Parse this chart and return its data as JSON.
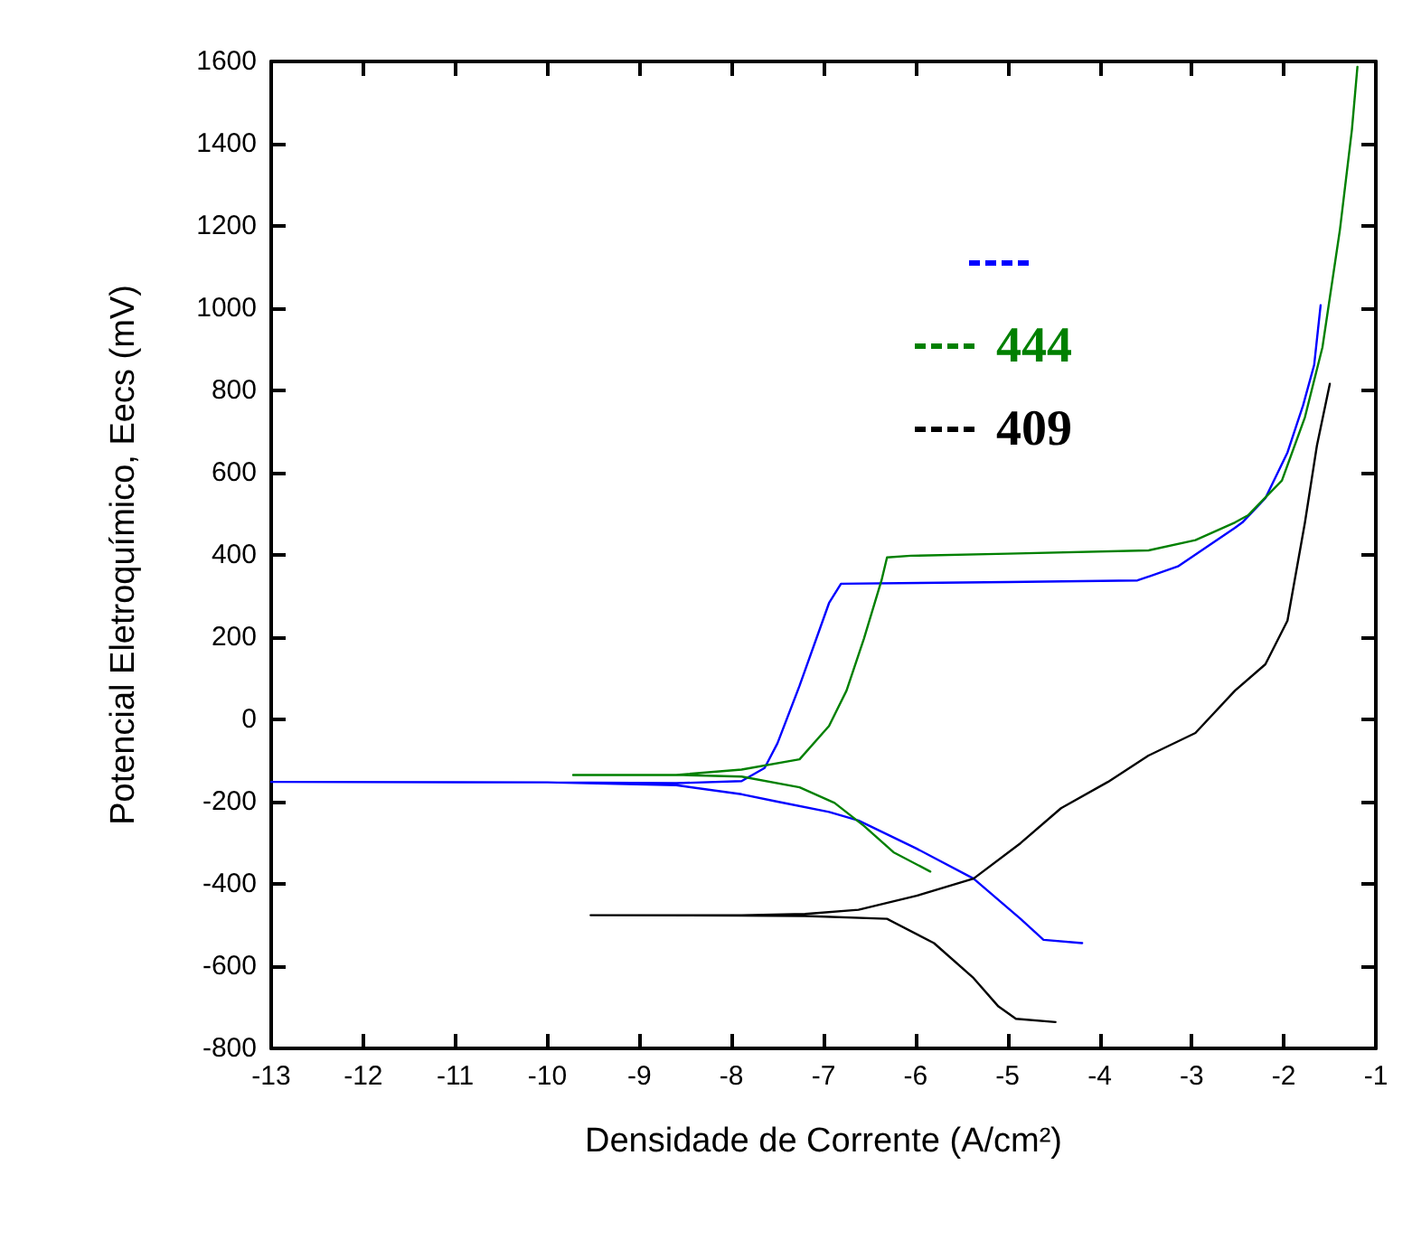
{
  "chart_data": {
    "type": "line",
    "xlabel": "Densidade de Corrente (A/cm²)",
    "ylabel": "Potencial Eletroquímico, Eecs (mV)",
    "xlim": [
      -13,
      -1
    ],
    "xticks": [
      -13,
      -12,
      -11,
      -10,
      -9,
      -8,
      -7,
      -6,
      -5,
      -4,
      -3,
      -2,
      -1
    ],
    "ylim": [
      -800,
      1600
    ],
    "yticks": [
      -800,
      -600,
      -400,
      -200,
      0,
      200,
      400,
      600,
      800,
      1000,
      1200,
      1400,
      1600
    ],
    "grid": false,
    "legend": "top right",
    "marker": "none",
    "line_style": "solid",
    "series": [
      {
        "color": "#0000ff",
        "x": [
          -4.19,
          -4.61,
          -4.86,
          -5.37,
          -5.99,
          -6.62,
          -6.94,
          -7.5,
          -7.89,
          -8.6,
          -10,
          -13,
          -10,
          -8.6,
          -7.89,
          -7.64,
          -7.5,
          -7.26,
          -6.94,
          -6.81,
          -5,
          -3.59,
          -3.15,
          -2.53,
          -2.45,
          -2.2,
          -1.96,
          -1.79,
          -1.67,
          -1.6
        ],
        "values": [
          -544,
          -536,
          -485,
          -387,
          -314,
          -246,
          -225,
          -200,
          -182,
          -160,
          -153,
          -152,
          -153,
          -155,
          -150,
          -118,
          -58,
          82,
          283,
          330,
          334,
          338,
          372,
          466,
          479,
          538,
          649,
          764,
          862,
          1007
        ]
      },
      {
        "name": "444",
        "color": "#008000",
        "x": [
          -5.84,
          -6.24,
          -6.56,
          -6.88,
          -7.26,
          -7.89,
          -8.6,
          -9.72,
          -8.6,
          -7.89,
          -7.26,
          -6.94,
          -6.75,
          -6.56,
          -6.37,
          -6.31,
          -6.05,
          -5,
          -3.47,
          -2.96,
          -2.53,
          -2.39,
          -2.02,
          -1.77,
          -1.58,
          -1.39,
          -1.26,
          -1.2
        ],
        "values": [
          -370,
          -323,
          -259,
          -203,
          -165,
          -139,
          -135,
          -135,
          -135,
          -122,
          -97,
          -16,
          70,
          197,
          338,
          394,
          398,
          403,
          411,
          436,
          479,
          496,
          581,
          735,
          905,
          1191,
          1434,
          1587
        ]
      },
      {
        "name": "409",
        "color": "#000000",
        "x": [
          -4.48,
          -4.91,
          -5.1,
          -5.37,
          -5.8,
          -6.31,
          -7.2,
          -7.89,
          -9.53,
          -7.89,
          -7.2,
          -6.62,
          -5.99,
          -5.37,
          -4.86,
          -4.42,
          -3.91,
          -3.47,
          -2.96,
          -2.53,
          -2.2,
          -1.96,
          -1.77,
          -1.64,
          -1.5
        ],
        "values": [
          -736,
          -728,
          -698,
          -629,
          -544,
          -485,
          -478,
          -477,
          -476,
          -476,
          -473,
          -463,
          -429,
          -387,
          -301,
          -216,
          -152,
          -88,
          -33,
          70,
          134,
          240,
          479,
          666,
          816
        ]
      }
    ]
  }
}
